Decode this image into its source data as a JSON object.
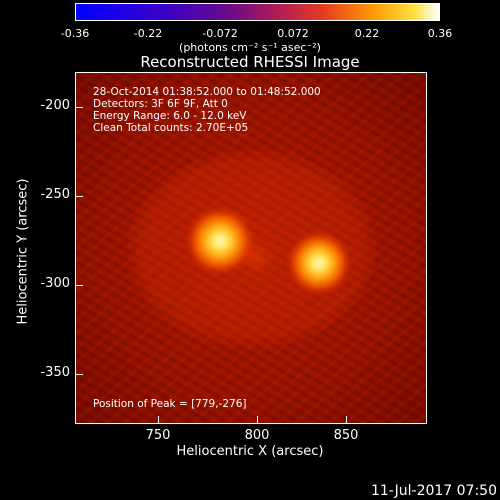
{
  "colorbar": {
    "ticks": [
      "-0.36",
      "-0.22",
      "-0.072",
      "0.072",
      "0.22",
      "0.36"
    ],
    "unit": "(photons cm⁻² s⁻¹ asec⁻²)"
  },
  "title": "Reconstructed RHESSI Image",
  "info": {
    "line1": "28-Oct-2014 01:38:52.000 to 01:48:52.000",
    "line2": "Detectors: 3F 6F 9F, Att 0",
    "line3": "Energy Range: 6.0 - 12.0 keV",
    "line4": "Clean    Total counts: 2.70E+05",
    "peak": "Position of Peak = [779,-276]"
  },
  "axes": {
    "xlabel": "Heliocentric X (arcsec)",
    "ylabel": "Heliocentric Y (arcsec)",
    "xticks": [
      "750",
      "800",
      "850"
    ],
    "yticks": [
      "-200",
      "-250",
      "-300",
      "-350"
    ]
  },
  "footer": "11-Jul-2017 07:50"
}
